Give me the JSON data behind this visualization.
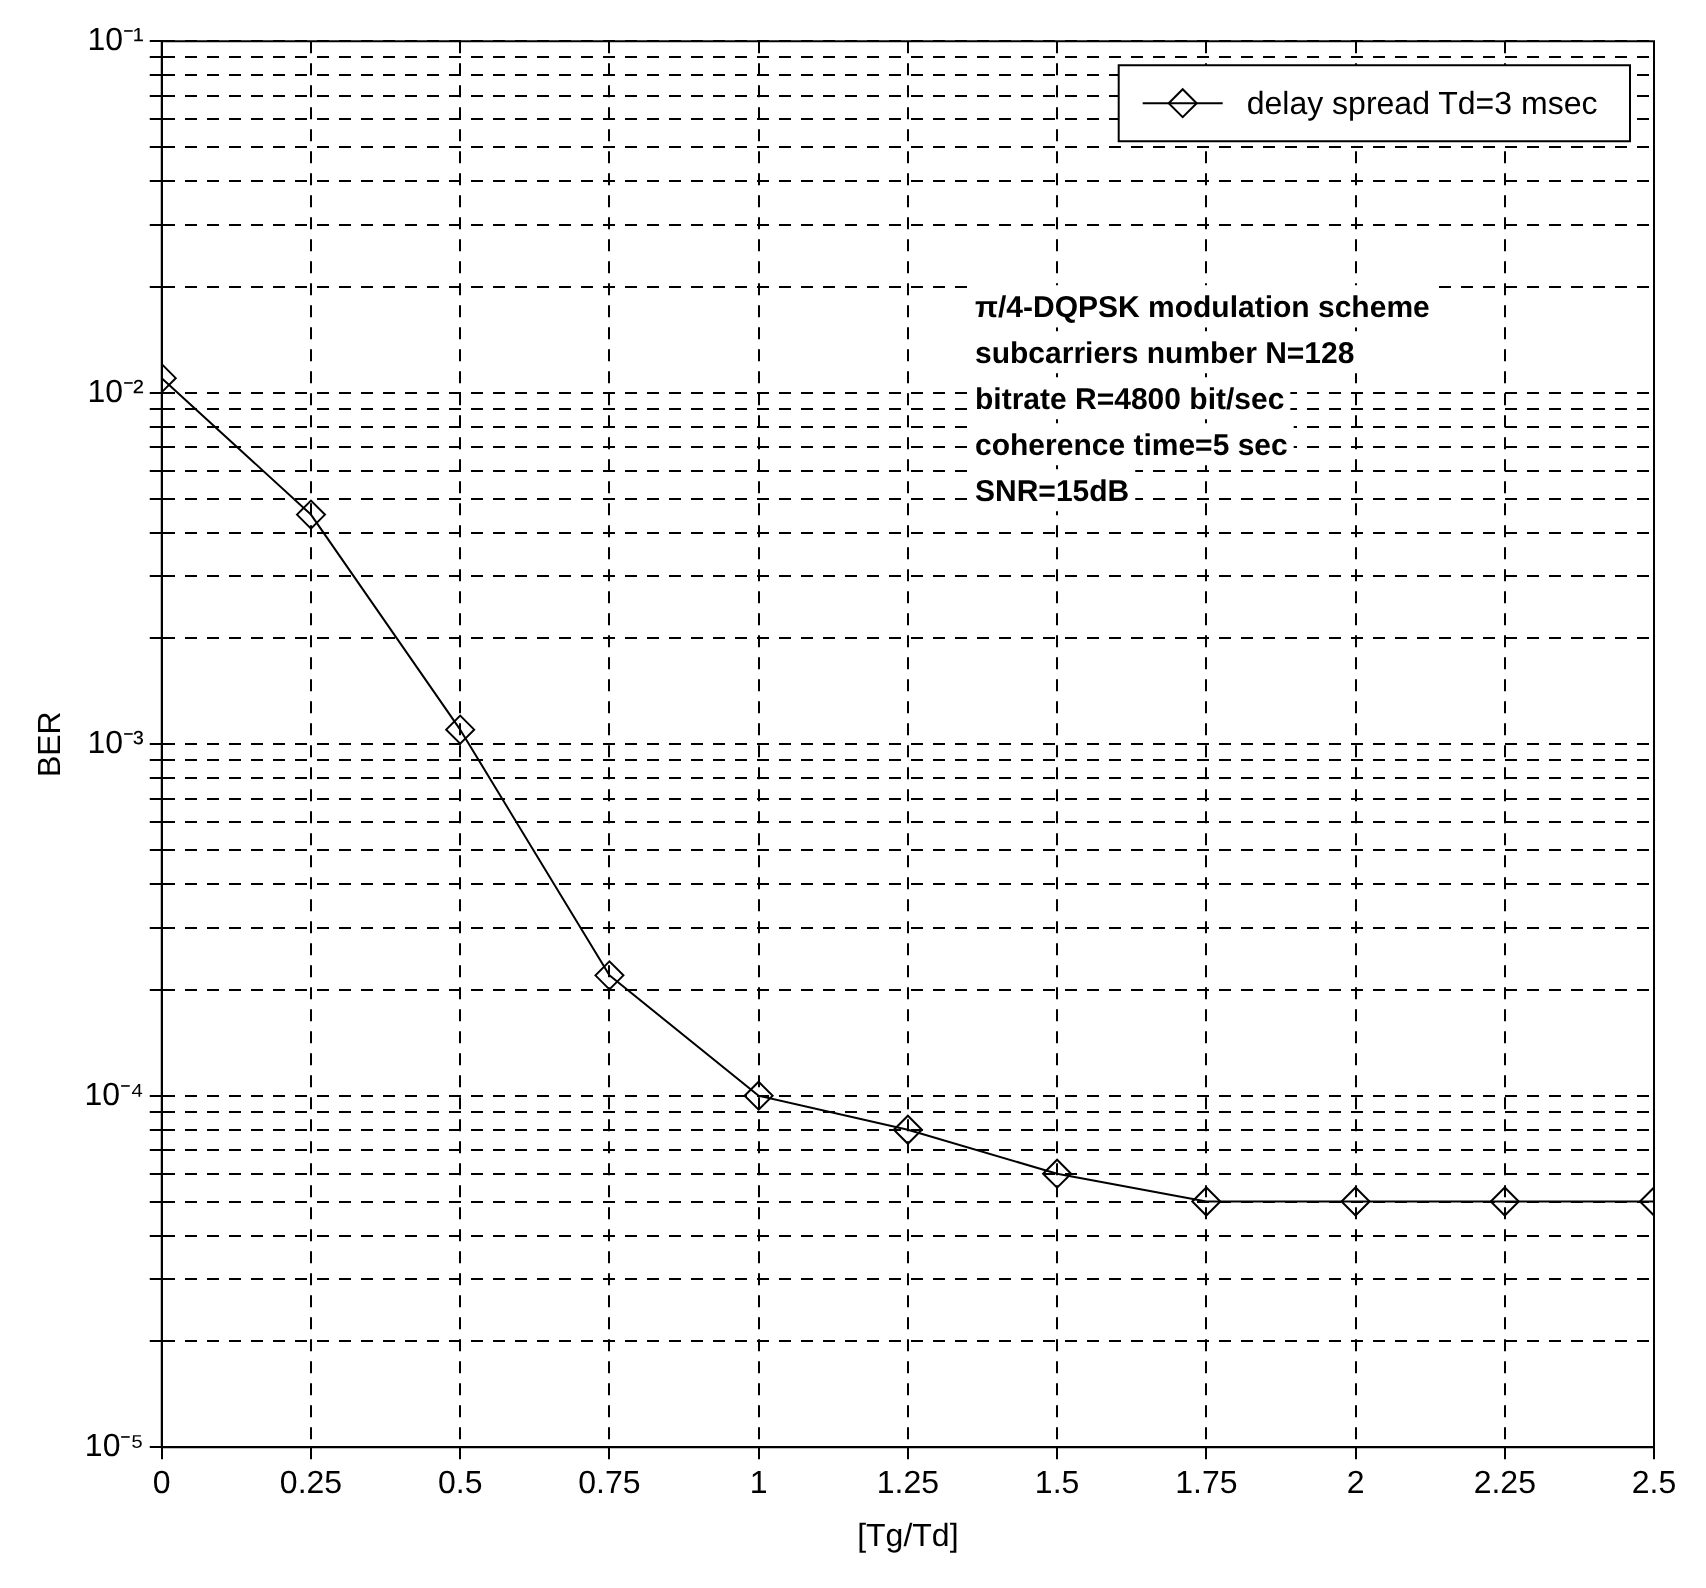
{
  "chart_data": {
    "type": "line",
    "xlabel": "[Tg/Td]",
    "ylabel": "BER",
    "x": [
      0,
      0.25,
      0.5,
      0.75,
      1,
      1.25,
      1.5,
      1.75,
      2,
      2.25,
      2.5
    ],
    "series": [
      {
        "name": "delay spread Td=3 msec",
        "color": "#000000",
        "values": [
          0.011,
          0.0045,
          0.0011,
          0.00022,
          0.0001,
          8e-05,
          6e-05,
          5e-05,
          5e-05,
          5e-05,
          5e-05
        ]
      }
    ],
    "log": "y",
    "xlim": [
      0,
      2.5
    ],
    "xticks": [
      0,
      0.25,
      0.5,
      0.75,
      1,
      1.25,
      1.5,
      1.75,
      2,
      2.25,
      2.5
    ],
    "ylim": [
      1e-05,
      0.1
    ],
    "yticks": [
      {
        "value": 1e-05,
        "label": "10⁻⁵"
      },
      {
        "value": 2e-05,
        "label": null
      },
      {
        "value": 3e-05,
        "label": null
      },
      {
        "value": 4e-05,
        "label": null
      },
      {
        "value": 5e-05,
        "label": null
      },
      {
        "value": 6e-05,
        "label": null
      },
      {
        "value": 7e-05,
        "label": null
      },
      {
        "value": 8e-05,
        "label": null
      },
      {
        "value": 9e-05,
        "label": null
      },
      {
        "value": 0.0001,
        "label": "10⁻⁴"
      },
      {
        "value": 0.0002,
        "label": null
      },
      {
        "value": 0.0003,
        "label": null
      },
      {
        "value": 0.0004,
        "label": null
      },
      {
        "value": 0.0005,
        "label": null
      },
      {
        "value": 0.0006,
        "label": null
      },
      {
        "value": 0.0007,
        "label": null
      },
      {
        "value": 0.0008,
        "label": null
      },
      {
        "value": 0.0009,
        "label": null
      },
      {
        "value": 0.001,
        "label": "10⁻³"
      },
      {
        "value": 0.002,
        "label": null
      },
      {
        "value": 0.003,
        "label": null
      },
      {
        "value": 0.004,
        "label": null
      },
      {
        "value": 0.005,
        "label": null
      },
      {
        "value": 0.006,
        "label": null
      },
      {
        "value": 0.007,
        "label": null
      },
      {
        "value": 0.008,
        "label": null
      },
      {
        "value": 0.009,
        "label": null
      },
      {
        "value": 0.01,
        "label": "10⁻²"
      },
      {
        "value": 0.02,
        "label": null
      },
      {
        "value": 0.03,
        "label": null
      },
      {
        "value": 0.04,
        "label": null
      },
      {
        "value": 0.05,
        "label": null
      },
      {
        "value": 0.06,
        "label": null
      },
      {
        "value": 0.07,
        "label": null
      },
      {
        "value": 0.08,
        "label": null
      },
      {
        "value": 0.09,
        "label": null
      },
      {
        "value": 0.1,
        "label": "10⁻¹"
      }
    ],
    "grid": true,
    "legend": "top right",
    "marker": "diamond",
    "line_style": "solid",
    "annotations": [
      "π/4-DQPSK modulation scheme",
      "subcarriers number N=128",
      "bitrate R=4800 bit/sec",
      "coherence time=5 sec",
      "SNR=15dB"
    ]
  }
}
